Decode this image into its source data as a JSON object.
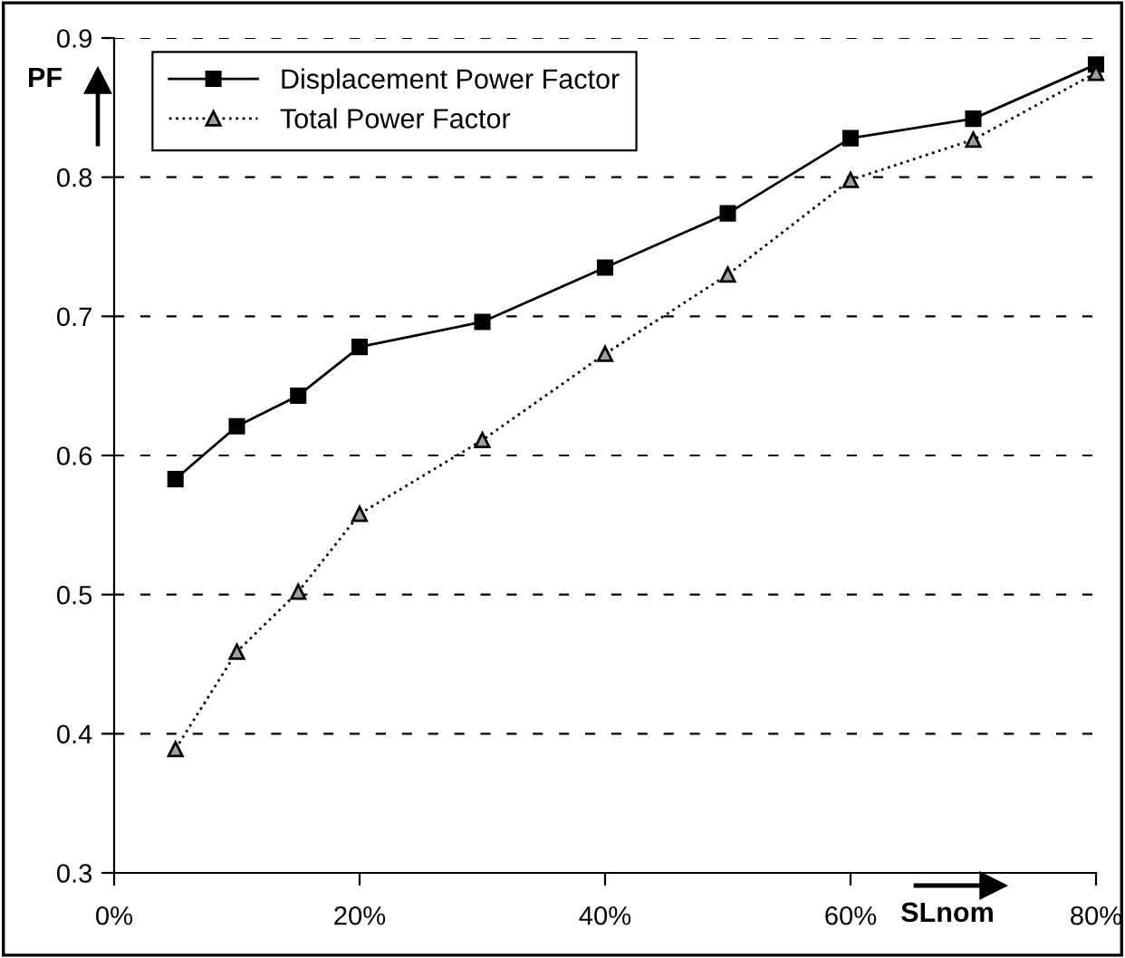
{
  "chart_data": {
    "type": "line",
    "xlabel": "SLnom",
    "ylabel": "PF",
    "x": [
      5,
      10,
      15,
      20,
      30,
      40,
      50,
      60,
      70,
      80
    ],
    "series": [
      {
        "name": "Displacement Power Factor",
        "color": "#000000",
        "marker": "square",
        "line_style": "solid",
        "values": [
          0.583,
          0.621,
          0.643,
          0.678,
          0.696,
          0.735,
          0.774,
          0.828,
          0.842,
          0.881
        ]
      },
      {
        "name": "Total Power Factor",
        "color": "#000000",
        "marker": "triangle",
        "line_style": "dotted",
        "values": [
          0.389,
          0.459,
          0.502,
          0.558,
          0.611,
          0.673,
          0.73,
          0.798,
          0.827,
          0.875
        ]
      }
    ],
    "xlim": [
      0,
      80
    ],
    "xticks": [
      {
        "value": 0,
        "label": "0%"
      },
      {
        "value": 20,
        "label": "20%"
      },
      {
        "value": 40,
        "label": "40%"
      },
      {
        "value": 60,
        "label": "60%"
      },
      {
        "value": 80,
        "label": "80%"
      }
    ],
    "ylim": [
      0.3,
      0.9
    ],
    "yticks": [
      {
        "value": 0.3,
        "label": "0.3"
      },
      {
        "value": 0.4,
        "label": "0.4"
      },
      {
        "value": 0.5,
        "label": "0.5"
      },
      {
        "value": 0.6,
        "label": "0.6"
      },
      {
        "value": 0.7,
        "label": "0.7"
      },
      {
        "value": 0.8,
        "label": "0.8"
      },
      {
        "value": 0.9,
        "label": "0.9"
      }
    ],
    "grid": "y",
    "legend": "top left"
  }
}
